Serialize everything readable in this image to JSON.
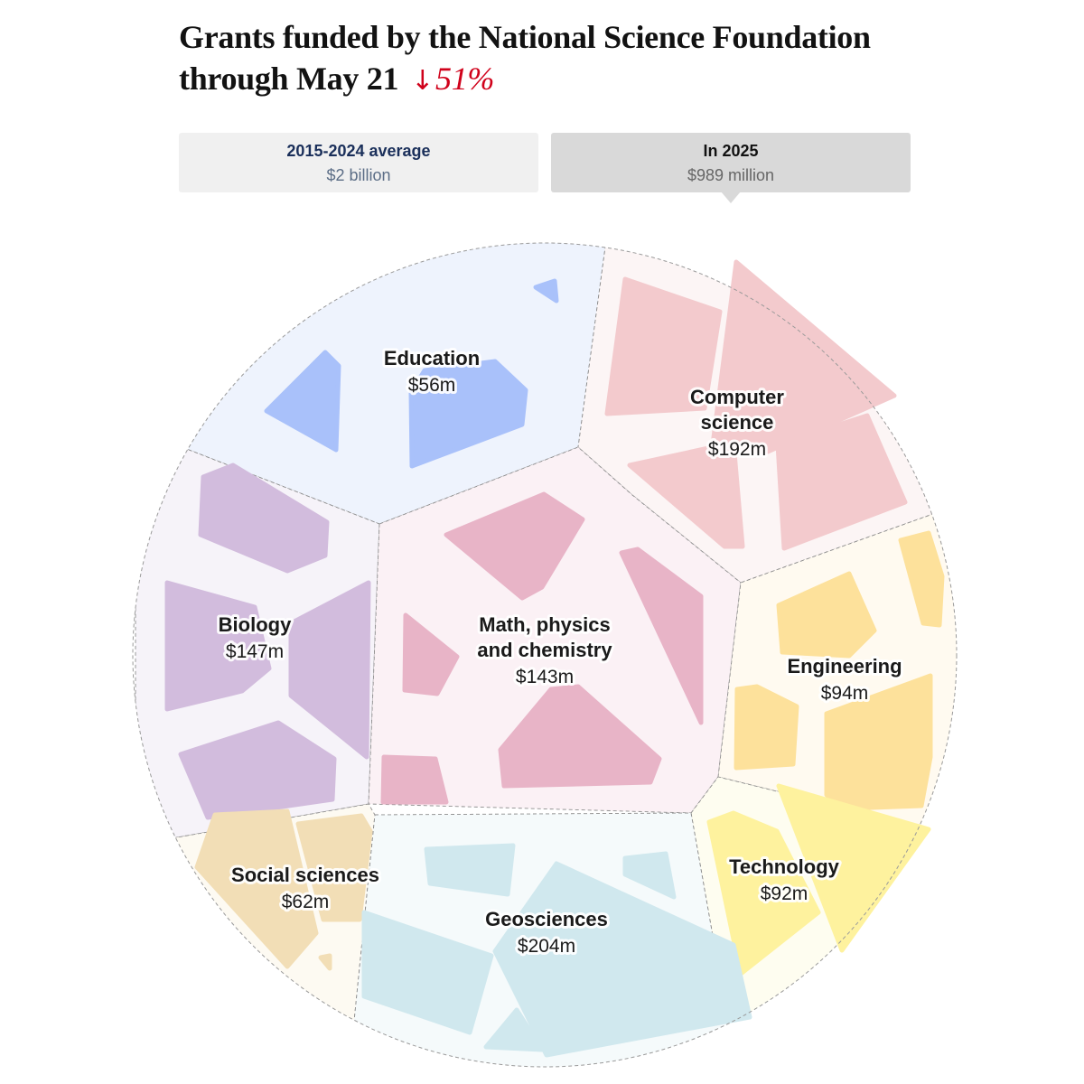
{
  "title": {
    "line1": "Grants funded by the National Science Foundation",
    "line2": "through May 21",
    "change": "51%"
  },
  "toggles": {
    "average": {
      "label": "2015-2024 average",
      "value": "$2 billion"
    },
    "current": {
      "label": "In 2025",
      "value": "$989 million"
    }
  },
  "chart_data": {
    "type": "voronoi treemap",
    "title": "Grants funded by the National Science Foundation through May 21",
    "change_label": "51%",
    "change_direction": "down",
    "totals": [
      {
        "period": "2015-2024 average",
        "amount": "$2 billion"
      },
      {
        "period": "In 2025",
        "amount": "$989 million"
      }
    ],
    "categories": [
      "Education",
      "Computer science",
      "Biology",
      "Math, physics and chemistry",
      "Engineering",
      "Social sciences",
      "Technology",
      "Geosciences"
    ],
    "values_millions": [
      56,
      192,
      147,
      143,
      94,
      62,
      92,
      204
    ],
    "labels": [
      {
        "name": [
          "Education"
        ],
        "value": "$56m"
      },
      {
        "name": [
          "Computer",
          "science"
        ],
        "value": "$192m"
      },
      {
        "name": [
          "Biology"
        ],
        "value": "$147m"
      },
      {
        "name": [
          "Math, physics",
          "and chemistry"
        ],
        "value": "$143m"
      },
      {
        "name": [
          "Engineering"
        ],
        "value": "$94m"
      },
      {
        "name": [
          "Social sciences"
        ],
        "value": "$62m"
      },
      {
        "name": [
          "Technology"
        ],
        "value": "$92m"
      },
      {
        "name": [
          "Geosciences"
        ],
        "value": "$204m"
      }
    ],
    "colors": {
      "Education": "#a9c1fa",
      "Computer science": "#f3cacd",
      "Biology": "#d2bcdd",
      "Math, physics and chemistry": "#e8b4c7",
      "Engineering": "#fde19b",
      "Social sciences": "#f2deb6",
      "Technology": "#fef29e",
      "Geosciences": "#d0e8ee"
    },
    "background_colors": {
      "Education": "#eef3fd",
      "Computer science": "#fcf5f5",
      "Biology": "#f6f3f9",
      "Math, physics and chemistry": "#fbf1f5",
      "Engineering": "#fffaf0",
      "Social sciences": "#fdfaf2",
      "Technology": "#fefdf0",
      "Geosciences": "#f5fafb"
    }
  }
}
